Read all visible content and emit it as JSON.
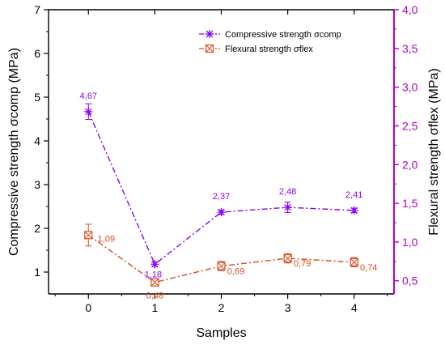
{
  "chart_data": {
    "type": "line",
    "xlabel": "Samples",
    "ylabel_left": "Compressive  strength σcomp (MPa)",
    "ylabel_right": "Flexural strength σflex (MPa)",
    "x": [
      0,
      1,
      2,
      3,
      4
    ],
    "xlim": [
      -0.6,
      4.6
    ],
    "x_ticks": [
      "0",
      "1",
      "2",
      "3",
      "4"
    ],
    "ylim_left": [
      0.5,
      7
    ],
    "y_ticks_left": [
      "1",
      "2",
      "3",
      "4",
      "5",
      "6",
      "7"
    ],
    "ylim_right": [
      0.33,
      4.0
    ],
    "y_ticks_right": [
      "0,5",
      "1,0",
      "1,5",
      "2,0",
      "2,5",
      "3,0",
      "3,5",
      "4,0"
    ],
    "grid": false,
    "legend_position": "top-right",
    "series": [
      {
        "name": "Compressive  strength σcomp",
        "axis": "left",
        "values": [
          4.67,
          1.18,
          2.37,
          2.48,
          2.41
        ],
        "labels": [
          "4,67",
          "1,18",
          "2,37",
          "2,48",
          "2,41"
        ],
        "error": [
          0.18,
          0.05,
          0.05,
          0.12,
          0.05
        ],
        "color": "#8b00ff",
        "line_style": "dash-dot",
        "marker": "asterisk"
      },
      {
        "name": "Flexural strength σflex",
        "axis": "right",
        "values": [
          1.09,
          0.48,
          0.69,
          0.79,
          0.74
        ],
        "labels": [
          "1,09",
          "0,48",
          "0,69",
          "0,79",
          "0,74"
        ],
        "error": [
          0.14,
          0.04,
          0.06,
          0.06,
          0.06
        ],
        "color": "#d94a1e",
        "line_style": "dash-dot",
        "marker": "crossed-square"
      }
    ],
    "colors": {
      "left_axis": "#000000",
      "right_axis": "#b000c8",
      "left_label": "#000000",
      "right_label": "#000000"
    }
  }
}
